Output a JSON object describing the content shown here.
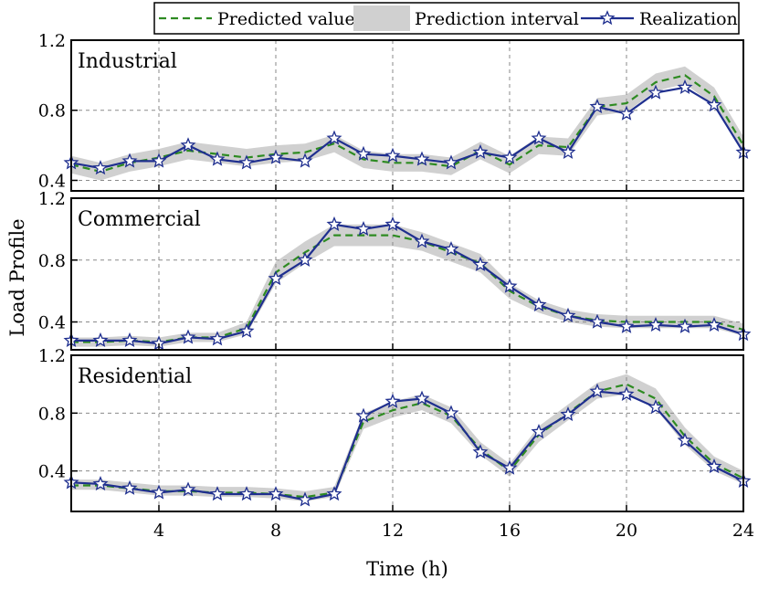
{
  "chart_data": {
    "type": "line",
    "xlabel": "Time (h)",
    "ylabel": "Load Profile",
    "xlim": [
      1,
      24
    ],
    "x_ticks": [
      4,
      8,
      12,
      16,
      20,
      24
    ],
    "x_tick_labels": [
      "4",
      "8",
      "12",
      "16",
      "20",
      "24"
    ],
    "grid": true,
    "legend_position": "top-right",
    "legend": {
      "predicted": "Predicted value",
      "interval": "Prediction interval",
      "realization": "Realization"
    },
    "colors": {
      "predicted": "#2e8b22",
      "interval": "#d0d0d0",
      "realization": "#1f2f8f",
      "marker_fill": "#ffffff"
    },
    "x": [
      1,
      2,
      3,
      4,
      5,
      6,
      7,
      8,
      9,
      10,
      11,
      12,
      13,
      14,
      15,
      16,
      17,
      18,
      19,
      20,
      21,
      22,
      23,
      24
    ],
    "panels": [
      {
        "title": "Industrial",
        "ylim": [
          0.34,
          1.2
        ],
        "y_ticks": [
          0.4,
          0.8,
          1.2
        ],
        "y_tick_labels": [
          "0.4",
          "0.8",
          "1.2"
        ],
        "series": [
          {
            "name": "Predicted value",
            "values": [
              0.49,
              0.45,
              0.5,
              0.53,
              0.57,
              0.55,
              0.53,
              0.55,
              0.56,
              0.61,
              0.52,
              0.5,
              0.5,
              0.48,
              0.57,
              0.49,
              0.6,
              0.59,
              0.82,
              0.84,
              0.96,
              1.0,
              0.88,
              0.6
            ]
          },
          {
            "name": "Realization",
            "values": [
              0.5,
              0.47,
              0.51,
              0.51,
              0.6,
              0.52,
              0.5,
              0.53,
              0.51,
              0.64,
              0.55,
              0.54,
              0.52,
              0.5,
              0.56,
              0.53,
              0.64,
              0.56,
              0.82,
              0.78,
              0.9,
              0.93,
              0.83,
              0.56
            ]
          },
          {
            "name": "Prediction interval",
            "lower": [
              0.44,
              0.4,
              0.45,
              0.48,
              0.52,
              0.5,
              0.48,
              0.5,
              0.51,
              0.56,
              0.47,
              0.45,
              0.45,
              0.43,
              0.52,
              0.44,
              0.55,
              0.54,
              0.77,
              0.79,
              0.91,
              0.95,
              0.83,
              0.55
            ],
            "upper": [
              0.54,
              0.5,
              0.55,
              0.58,
              0.62,
              0.6,
              0.58,
              0.6,
              0.61,
              0.66,
              0.57,
              0.55,
              0.55,
              0.53,
              0.62,
              0.54,
              0.65,
              0.64,
              0.87,
              0.89,
              1.01,
              1.05,
              0.93,
              0.65
            ]
          }
        ]
      },
      {
        "title": "Commercial",
        "ylim": [
          0.22,
          1.2
        ],
        "y_ticks": [
          0.4,
          0.8,
          1.2
        ],
        "y_tick_labels": [
          "0.4",
          "0.8",
          "1.2"
        ],
        "series": [
          {
            "name": "Predicted value",
            "values": [
              0.27,
              0.27,
              0.28,
              0.27,
              0.3,
              0.3,
              0.36,
              0.72,
              0.85,
              0.96,
              0.96,
              0.96,
              0.92,
              0.85,
              0.78,
              0.6,
              0.5,
              0.44,
              0.41,
              0.4,
              0.4,
              0.4,
              0.4,
              0.35
            ]
          },
          {
            "name": "Realization",
            "values": [
              0.28,
              0.28,
              0.28,
              0.26,
              0.3,
              0.29,
              0.34,
              0.68,
              0.8,
              1.03,
              1.0,
              1.03,
              0.92,
              0.87,
              0.77,
              0.63,
              0.51,
              0.44,
              0.4,
              0.37,
              0.38,
              0.37,
              0.38,
              0.32
            ]
          },
          {
            "name": "Prediction interval",
            "lower": [
              0.24,
              0.24,
              0.25,
              0.24,
              0.27,
              0.27,
              0.32,
              0.65,
              0.78,
              0.89,
              0.89,
              0.89,
              0.86,
              0.79,
              0.72,
              0.55,
              0.46,
              0.4,
              0.37,
              0.36,
              0.36,
              0.36,
              0.36,
              0.31
            ],
            "upper": [
              0.3,
              0.3,
              0.31,
              0.3,
              0.33,
              0.33,
              0.4,
              0.79,
              0.92,
              1.03,
              1.03,
              1.03,
              0.98,
              0.91,
              0.84,
              0.65,
              0.54,
              0.48,
              0.45,
              0.44,
              0.44,
              0.44,
              0.44,
              0.39
            ]
          }
        ]
      },
      {
        "title": "Residential",
        "ylim": [
          0.12,
          1.2
        ],
        "y_ticks": [
          0.4,
          0.8,
          1.2
        ],
        "y_tick_labels": [
          "0.4",
          "0.8",
          "1.2"
        ],
        "series": [
          {
            "name": "Predicted value",
            "values": [
              0.3,
              0.3,
              0.28,
              0.26,
              0.26,
              0.25,
              0.25,
              0.24,
              0.22,
              0.25,
              0.74,
              0.82,
              0.87,
              0.78,
              0.55,
              0.4,
              0.65,
              0.8,
              0.95,
              1.0,
              0.9,
              0.64,
              0.45,
              0.35
            ]
          },
          {
            "name": "Realization",
            "values": [
              0.32,
              0.31,
              0.28,
              0.25,
              0.27,
              0.24,
              0.24,
              0.24,
              0.2,
              0.24,
              0.78,
              0.88,
              0.9,
              0.8,
              0.53,
              0.42,
              0.67,
              0.79,
              0.95,
              0.93,
              0.84,
              0.61,
              0.43,
              0.33
            ]
          },
          {
            "name": "Prediction interval",
            "lower": [
              0.27,
              0.27,
              0.25,
              0.23,
              0.23,
              0.22,
              0.22,
              0.21,
              0.19,
              0.22,
              0.69,
              0.77,
              0.82,
              0.73,
              0.51,
              0.36,
              0.6,
              0.75,
              0.9,
              0.93,
              0.83,
              0.58,
              0.4,
              0.31
            ],
            "upper": [
              0.34,
              0.34,
              0.32,
              0.3,
              0.3,
              0.29,
              0.29,
              0.28,
              0.26,
              0.29,
              0.8,
              0.88,
              0.93,
              0.84,
              0.6,
              0.45,
              0.71,
              0.86,
              1.01,
              1.07,
              0.97,
              0.7,
              0.5,
              0.4
            ]
          }
        ]
      }
    ]
  }
}
